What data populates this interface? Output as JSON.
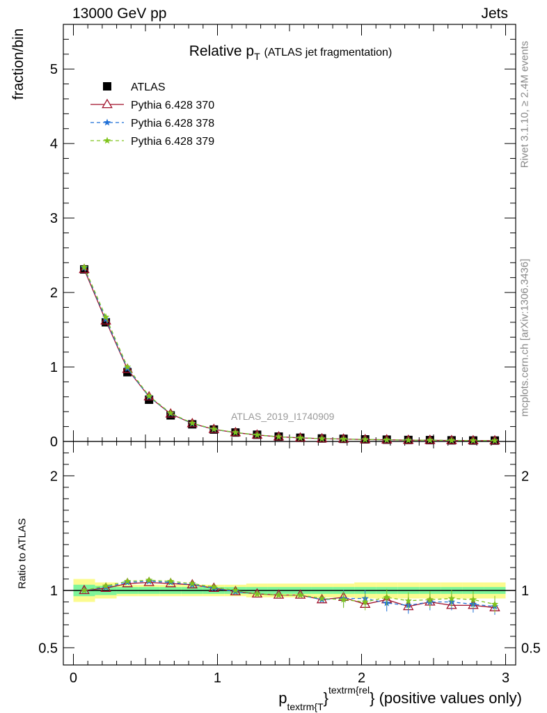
{
  "header": {
    "left": "13000 GeV pp",
    "right": "Jets"
  },
  "title": {
    "main": "Relative p",
    "sub": "T",
    "paren": "(ATLAS jet fragmentation)"
  },
  "side_text": {
    "rivet": "Rivet 3.1.10, ≥ 2.4M events",
    "mcplots": "mcplots.cern.ch [arXiv:1306.3436]"
  },
  "watermark": "ATLAS_2019_I1740909",
  "xlabel": {
    "p": "p",
    "sub": "textrm{T",
    "sup": "textrm{rel",
    "brace": "}",
    "rest": "} (positive values only)"
  },
  "colors": {
    "atlas": "#000000",
    "p370": "#a0102a",
    "p378": "#1f6fd6",
    "p379": "#7fc31c",
    "band_inner": "#7ef59a",
    "band_outer": "#fbfb8e"
  },
  "chart_data": {
    "type": "line",
    "x": [
      0.075,
      0.225,
      0.375,
      0.525,
      0.675,
      0.825,
      0.975,
      1.125,
      1.275,
      1.425,
      1.575,
      1.725,
      1.875,
      2.025,
      2.175,
      2.325,
      2.475,
      2.625,
      2.775,
      2.925
    ],
    "xlim": [
      -0.07,
      3.07
    ],
    "xticks": [
      "0",
      "1",
      "2",
      "3"
    ],
    "main": {
      "ylabel": "fraction/bin",
      "ylim": [
        0,
        5.6
      ],
      "yticks": [
        "0",
        "1",
        "2",
        "3",
        "4",
        "5"
      ],
      "series": [
        {
          "name": "ATLAS",
          "marker": "square",
          "values": [
            2.31,
            1.6,
            0.93,
            0.56,
            0.35,
            0.23,
            0.16,
            0.12,
            0.09,
            0.065,
            0.05,
            0.04,
            0.035,
            0.028,
            0.024,
            0.02,
            0.018,
            0.015,
            0.013,
            0.012
          ]
        },
        {
          "name": "Pythia 6.428 370",
          "marker": "triangle",
          "style": "solid",
          "values": [
            2.31,
            1.62,
            0.97,
            0.6,
            0.37,
            0.24,
            0.163,
            0.119,
            0.087,
            0.063,
            0.048,
            0.037,
            0.033,
            0.025,
            0.022,
            0.017,
            0.016,
            0.013,
            0.011,
            0.01
          ]
        },
        {
          "name": "Pythia 6.428 378",
          "marker": "star",
          "style": "dashed",
          "values": [
            2.33,
            1.64,
            0.98,
            0.6,
            0.375,
            0.24,
            0.163,
            0.12,
            0.088,
            0.063,
            0.048,
            0.037,
            0.032,
            0.026,
            0.021,
            0.018,
            0.016,
            0.013,
            0.011,
            0.01
          ]
        },
        {
          "name": "Pythia 6.428 379",
          "marker": "star",
          "style": "dashed",
          "values": [
            2.34,
            1.67,
            1.0,
            0.61,
            0.38,
            0.245,
            0.166,
            0.121,
            0.088,
            0.063,
            0.048,
            0.037,
            0.032,
            0.026,
            0.022,
            0.018,
            0.017,
            0.014,
            0.012,
            0.011
          ]
        }
      ]
    },
    "ratio": {
      "ylabel": "Ratio to ATLAS",
      "ylim": [
        0.35,
        2.3
      ],
      "yticks": [
        "0.5",
        "1",
        "2"
      ],
      "band_inner": [
        0.05,
        0.04,
        0.03,
        0.03,
        0.03,
        0.03,
        0.03,
        0.03,
        0.03,
        0.03,
        0.03,
        0.03,
        0.03,
        0.03,
        0.03,
        0.03,
        0.03,
        0.03,
        0.03,
        0.03
      ],
      "band_outer": [
        0.1,
        0.07,
        0.05,
        0.05,
        0.05,
        0.05,
        0.05,
        0.05,
        0.06,
        0.06,
        0.06,
        0.06,
        0.06,
        0.07,
        0.07,
        0.07,
        0.07,
        0.07,
        0.07,
        0.07
      ],
      "series": [
        {
          "name": "Pythia 6.428 370",
          "values": [
            1.0,
            1.02,
            1.06,
            1.07,
            1.06,
            1.05,
            1.02,
            0.99,
            0.97,
            0.96,
            0.96,
            0.92,
            0.94,
            0.88,
            0.92,
            0.86,
            0.9,
            0.87,
            0.87,
            0.85
          ]
        },
        {
          "name": "Pythia 6.428 378",
          "values": [
            1.0,
            1.03,
            1.07,
            1.08,
            1.07,
            1.05,
            1.02,
            0.99,
            0.97,
            0.96,
            0.96,
            0.92,
            0.93,
            0.93,
            0.89,
            0.87,
            0.9,
            0.9,
            0.88,
            0.86
          ]
        },
        {
          "name": "Pythia 6.428 379",
          "values": [
            1.0,
            1.04,
            1.08,
            1.09,
            1.08,
            1.06,
            1.03,
            1.0,
            0.97,
            0.96,
            0.96,
            0.93,
            0.92,
            0.9,
            0.94,
            0.91,
            0.92,
            0.93,
            0.92,
            0.88
          ]
        }
      ]
    }
  }
}
